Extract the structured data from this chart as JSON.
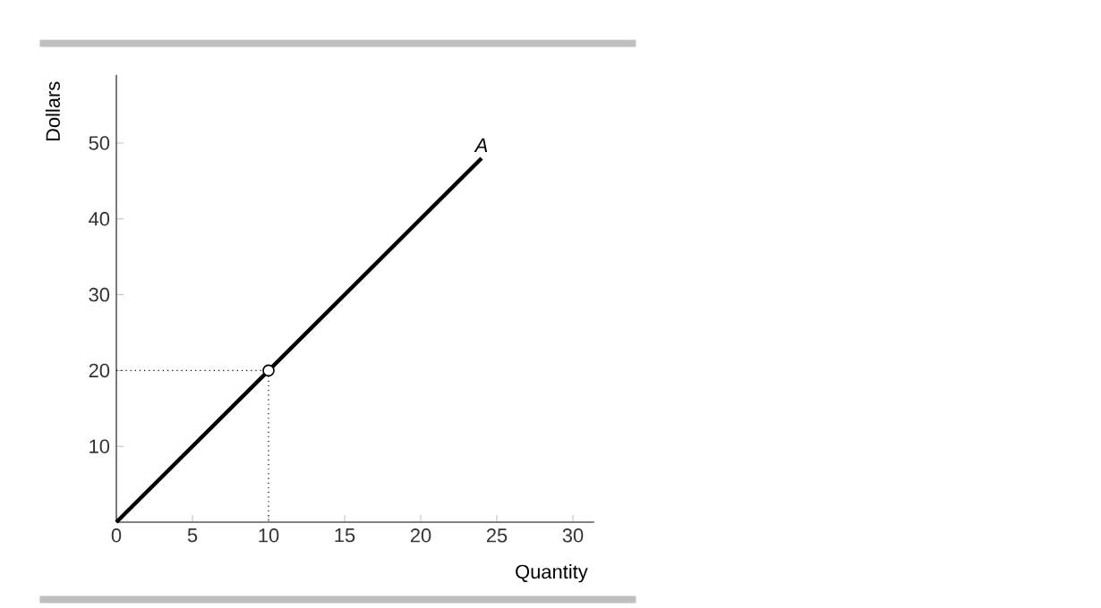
{
  "chart_data": {
    "type": "line",
    "xlabel": "Quantity",
    "ylabel": "Dollars",
    "xlim": [
      0,
      31.4
    ],
    "ylim": [
      0,
      59
    ],
    "xticks": [
      0,
      5,
      10,
      15,
      20,
      25,
      30
    ],
    "yticks": [
      10,
      20,
      30,
      40,
      50
    ],
    "series": [
      {
        "name": "A",
        "color": "#000000",
        "x": [
          0,
          24
        ],
        "values": [
          0,
          48
        ]
      },
      {
        "line_style": "dotted",
        "color": "#000000",
        "x": [
          0,
          10,
          10
        ],
        "values": [
          20,
          20,
          0
        ]
      },
      {
        "type": "scatter",
        "color": "#000000",
        "x": [
          10
        ],
        "values": [
          20
        ]
      }
    ]
  }
}
